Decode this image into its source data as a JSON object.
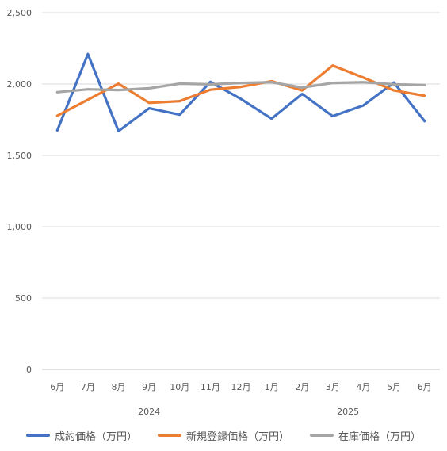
{
  "chart_data": {
    "type": "line",
    "categories": [
      "6月",
      "7月",
      "8月",
      "9月",
      "10月",
      "11月",
      "12月",
      "1月",
      "2月",
      "3月",
      "4月",
      "5月",
      "6月"
    ],
    "year_groups": [
      {
        "label": "2024",
        "from": 0,
        "to": 6
      },
      {
        "label": "2025",
        "from": 7,
        "to": 12
      }
    ],
    "ylim": [
      0,
      2500
    ],
    "yticks": [
      0,
      500,
      1000,
      1500,
      2000,
      2500
    ],
    "ytick_labels": [
      "0",
      "500",
      "1,000",
      "1,500",
      "2,000",
      "2,500"
    ],
    "grid": true,
    "legend_position": "bottom",
    "series": [
      {
        "name": "成約価格（万円）",
        "color": "#4472C4",
        "values": [
          1675,
          2210,
          1670,
          1830,
          1785,
          2015,
          1895,
          1757,
          1930,
          1775,
          1850,
          2010,
          1740
        ]
      },
      {
        "name": "新規登録価格（万円）",
        "color": "#ED7D31",
        "values": [
          1778,
          1890,
          2002,
          1868,
          1880,
          1960,
          1980,
          2020,
          1955,
          2130,
          2045,
          1955,
          1918
        ]
      },
      {
        "name": "在庫価格（万円）",
        "color": "#A5A5A5",
        "values": [
          1943,
          1963,
          1958,
          1970,
          2003,
          1998,
          2008,
          2013,
          1975,
          2008,
          2013,
          1998,
          1993
        ]
      }
    ]
  }
}
